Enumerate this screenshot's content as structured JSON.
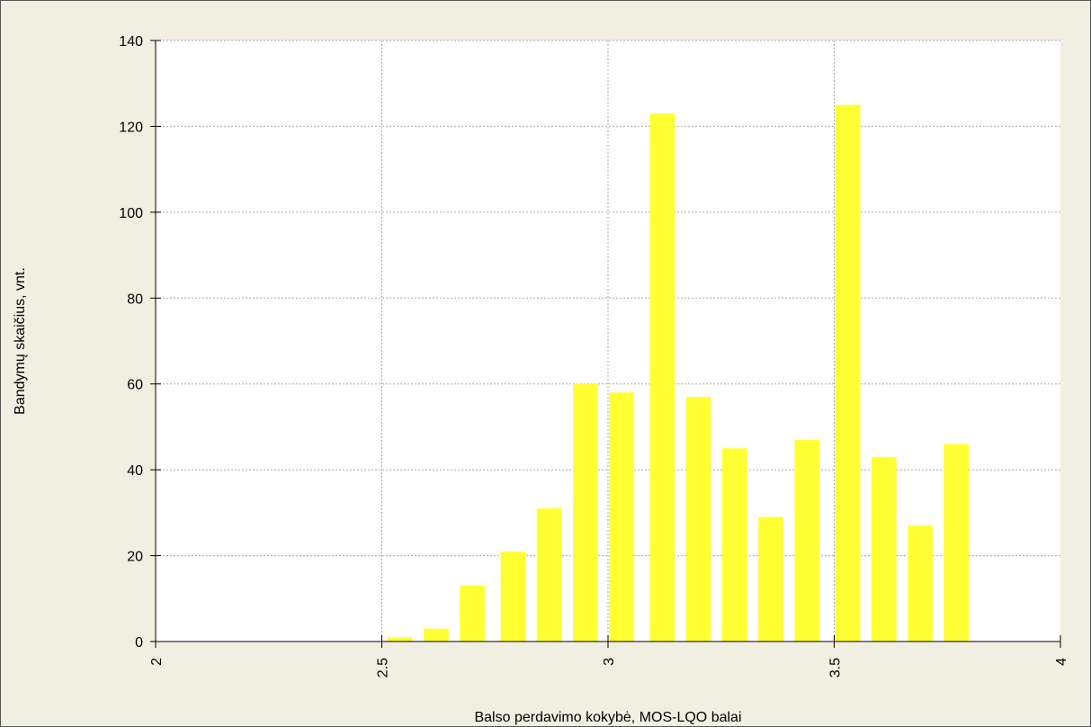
{
  "chart_data": {
    "type": "bar",
    "title": "",
    "xlabel": "Balso perdavimo kokybė, MOS-LQO balai",
    "ylabel": "Bandymų skaičius, vnt.",
    "xlim": [
      2,
      4
    ],
    "ylim": [
      0,
      140
    ],
    "x_ticks": [
      "2",
      "2.5",
      "3",
      "3.5",
      "4"
    ],
    "y_ticks": [
      "0",
      "20",
      "40",
      "60",
      "80",
      "100",
      "120",
      "140"
    ],
    "grid": true,
    "legend": "none",
    "bar_width": 0.055,
    "x": [
      2.54,
      2.62,
      2.7,
      2.79,
      2.87,
      2.95,
      3.03,
      3.12,
      3.2,
      3.28,
      3.36,
      3.44,
      3.53,
      3.61,
      3.69,
      3.77
    ],
    "values": [
      1,
      3,
      13,
      21,
      31,
      60,
      58,
      123,
      57,
      45,
      29,
      47,
      125,
      43,
      27,
      46
    ],
    "bar_color": "#ffff33"
  },
  "colors": {
    "frame_bg": "#f1efe2",
    "plot_bg": "#ffffff",
    "grid": "#a9a9a9",
    "axis": "#000000"
  }
}
